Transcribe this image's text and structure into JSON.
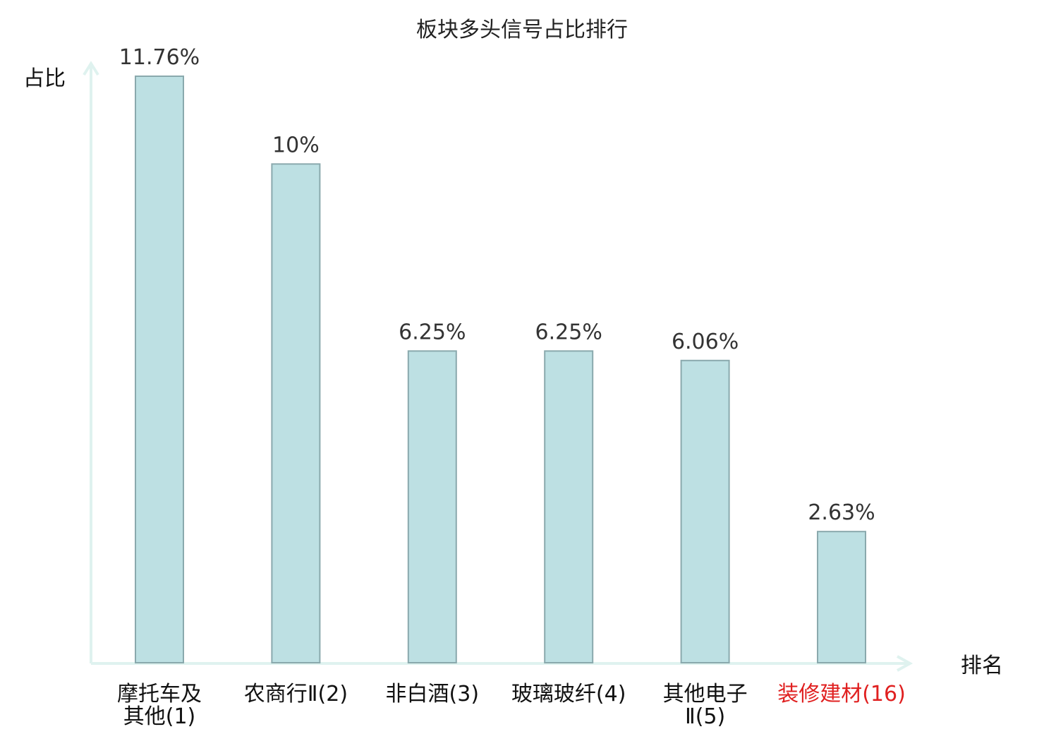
{
  "chart_data": {
    "type": "bar",
    "title": "板块多头信号占比排行",
    "ylabel": "占比",
    "xlabel": "排名",
    "categories": [
      [
        "摩托车及",
        "其他(1)"
      ],
      [
        "农商行Ⅱ(2)"
      ],
      [
        "非白酒(3)"
      ],
      [
        "玻璃玻纤(4)"
      ],
      [
        "其他电子",
        "Ⅱ(5)"
      ],
      [
        "装修建材(16)"
      ]
    ],
    "values": [
      11.76,
      10,
      6.25,
      6.25,
      6.06,
      2.63
    ],
    "value_labels": [
      "11.76%",
      "10%",
      "6.25%",
      "6.25%",
      "6.06%",
      "2.63%"
    ],
    "highlight_index": 5,
    "ylim": [
      0,
      12.3
    ],
    "grid": false,
    "legend": "none",
    "colors": {
      "bar_fill": "#bde0e3",
      "bar_stroke": "#8aa9ad",
      "axis": "#dff2ef",
      "label": "#111111",
      "highlight": "#e02020"
    }
  }
}
